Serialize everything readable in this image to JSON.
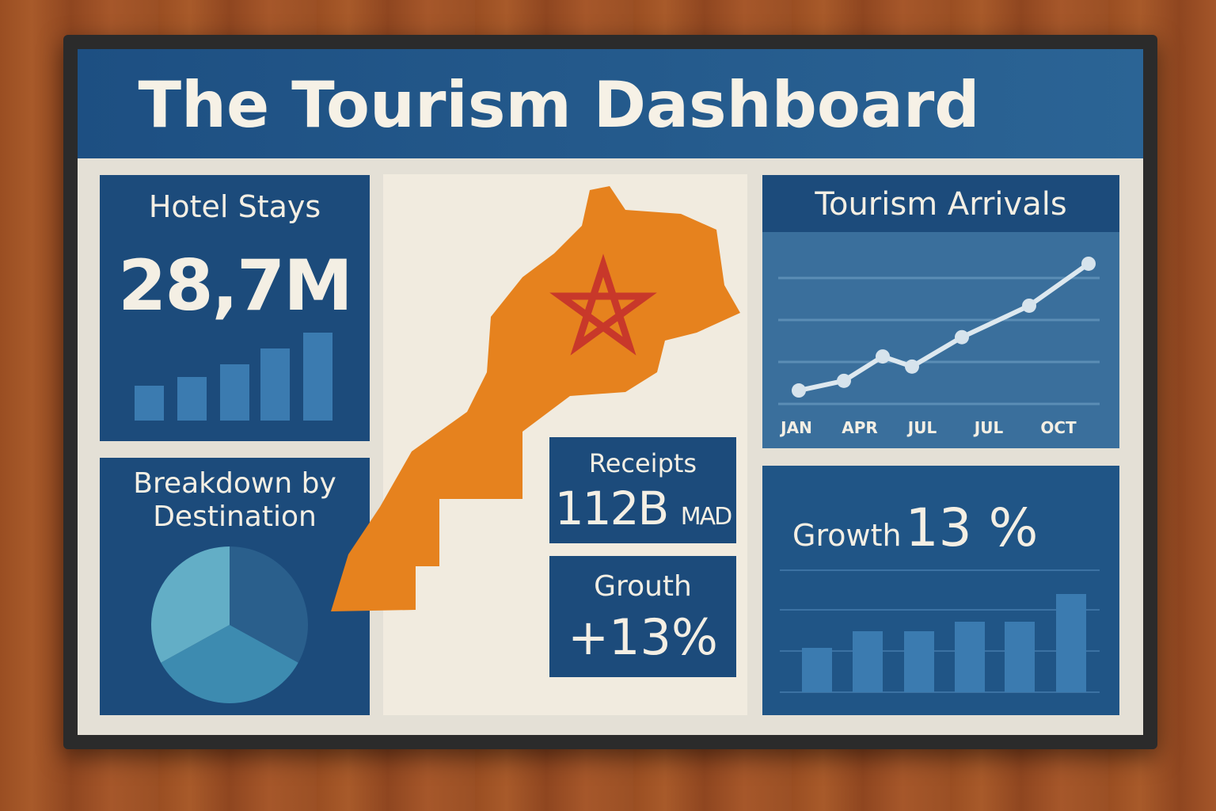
{
  "header": {
    "title": "The Tourism Dashboard"
  },
  "hotel_stays": {
    "title": "Hotel Stays",
    "value": "28,7M"
  },
  "breakdown": {
    "title_line1": "Breakdown by",
    "title_line2": "Destination"
  },
  "receipts": {
    "title": "Receipts",
    "value": "112B",
    "unit": "MAD"
  },
  "growth_card": {
    "title": "Grouth",
    "value": "+13%"
  },
  "arrivals": {
    "title": "Tourism Arrivals"
  },
  "growth_panel": {
    "label": "Growth",
    "value": "13 %"
  },
  "colors": {
    "header": "#1f5486",
    "panel": "#1c4b7b",
    "bar": "#3b7bb0",
    "map": "#e6821e",
    "star": "#c8382a",
    "pie": [
      "#2a5f8c",
      "#3d8bb0",
      "#63aec6"
    ]
  },
  "map": {
    "icon": "morocco-map-with-star"
  },
  "chart_data": [
    {
      "type": "bar",
      "title": "Hotel Stays",
      "values": [
        44,
        55,
        71,
        91,
        111
      ]
    },
    {
      "type": "line",
      "title": "Tourism Arrivals",
      "x_tick_labels": [
        "JAN",
        "APR",
        "JUL",
        "JUL",
        "OCT"
      ],
      "values": [
        0.32,
        0.55,
        1.13,
        0.89,
        1.59,
        2.34,
        3.34
      ],
      "grid": true
    },
    {
      "type": "pie",
      "title": "Breakdown by Destination",
      "values": [
        33,
        34,
        33
      ]
    },
    {
      "type": "bar",
      "title": "Growth 13 %",
      "values": [
        56,
        77,
        77,
        89,
        89,
        124
      ],
      "grid": true
    }
  ]
}
